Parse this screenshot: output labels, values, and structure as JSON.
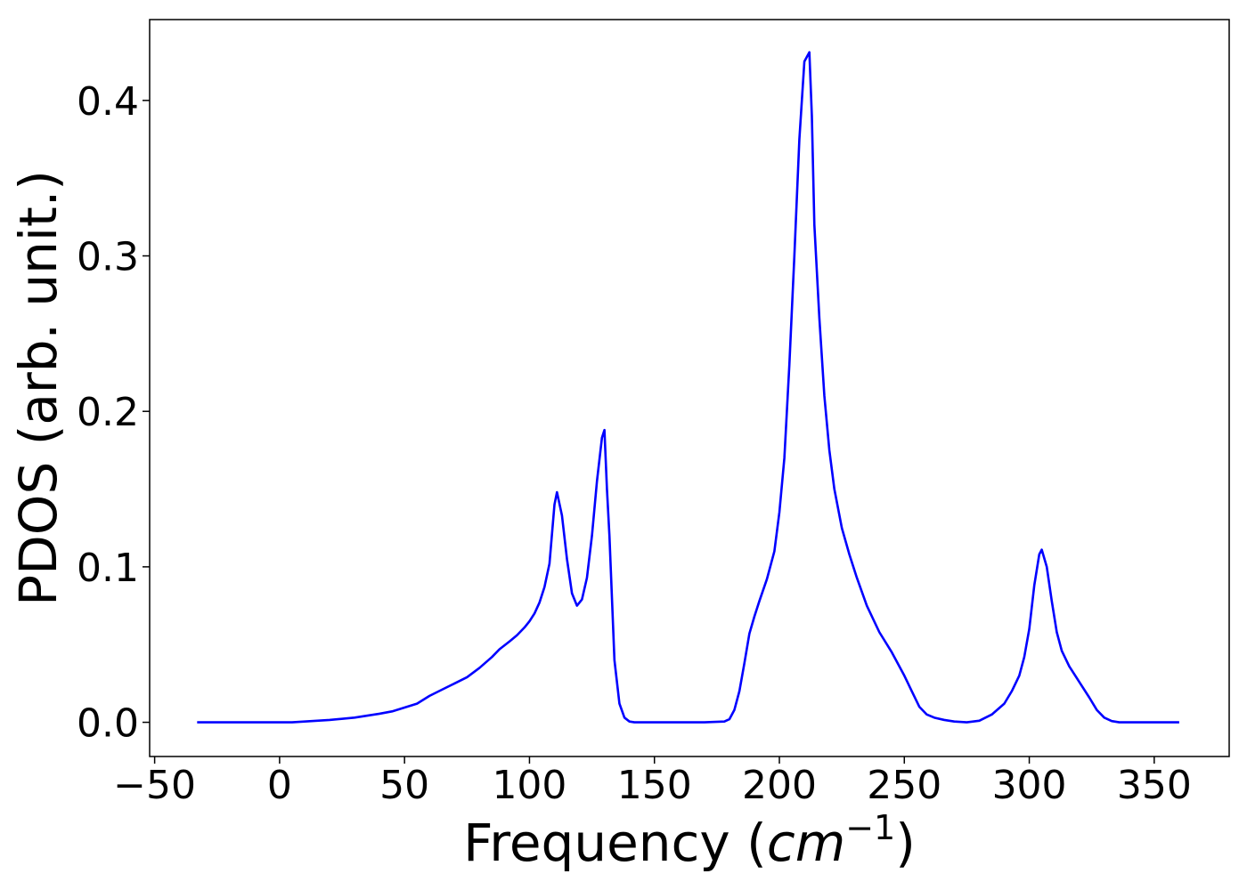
{
  "chart_data": {
    "type": "line",
    "xlabel_prefix": "Frequency (",
    "xlabel_unit_base": "cm",
    "xlabel_unit_exp": "−1",
    "xlabel_suffix": ")",
    "ylabel": "PDOS (arb. unit.)",
    "xlim": [
      -52,
      380
    ],
    "ylim": [
      -0.022,
      0.452
    ],
    "xticks": [
      -50,
      0,
      50,
      100,
      150,
      200,
      250,
      300,
      350
    ],
    "xtick_labels": [
      "−50",
      "0",
      "50",
      "100",
      "150",
      "200",
      "250",
      "300",
      "350"
    ],
    "yticks": [
      0.0,
      0.1,
      0.2,
      0.3,
      0.4
    ],
    "ytick_labels": [
      "0.0",
      "0.1",
      "0.2",
      "0.3",
      "0.4"
    ],
    "grid": false,
    "series": [
      {
        "color": "#0000ff",
        "x": [
          -33,
          0,
          5,
          10,
          20,
          30,
          40,
          45,
          50,
          55,
          60,
          65,
          70,
          75,
          80,
          85,
          88,
          92,
          95,
          98,
          100,
          102,
          104,
          106,
          108,
          110,
          111,
          113,
          115,
          117,
          119,
          121,
          123,
          125,
          127,
          129,
          130,
          131,
          132,
          134,
          136,
          138,
          140,
          142,
          145,
          150,
          160,
          170,
          178,
          180,
          182,
          184,
          186,
          188,
          190,
          192,
          195,
          198,
          200,
          202,
          204,
          206,
          208,
          210,
          212,
          213,
          214,
          216,
          218,
          220,
          222,
          225,
          228,
          231,
          235,
          240,
          245,
          250,
          253,
          256,
          259,
          262,
          266,
          270,
          275,
          280,
          285,
          290,
          293,
          296,
          298,
          300,
          302,
          304,
          305,
          307,
          309,
          311,
          313,
          316,
          320,
          324,
          327,
          330,
          333,
          336,
          340,
          350,
          360
        ],
        "y": [
          0.0,
          0.0,
          0.0,
          0.0005,
          0.0015,
          0.003,
          0.0055,
          0.007,
          0.0095,
          0.012,
          0.017,
          0.021,
          0.025,
          0.029,
          0.035,
          0.042,
          0.047,
          0.052,
          0.056,
          0.061,
          0.065,
          0.07,
          0.077,
          0.087,
          0.102,
          0.14,
          0.148,
          0.133,
          0.105,
          0.083,
          0.075,
          0.079,
          0.093,
          0.12,
          0.155,
          0.183,
          0.188,
          0.15,
          0.12,
          0.04,
          0.012,
          0.003,
          0.0005,
          0.0,
          0.0,
          0.0,
          0.0,
          0.0,
          0.0005,
          0.002,
          0.008,
          0.02,
          0.038,
          0.057,
          0.068,
          0.078,
          0.092,
          0.11,
          0.135,
          0.17,
          0.23,
          0.3,
          0.375,
          0.425,
          0.431,
          0.39,
          0.32,
          0.26,
          0.21,
          0.175,
          0.15,
          0.125,
          0.108,
          0.093,
          0.075,
          0.058,
          0.045,
          0.03,
          0.02,
          0.01,
          0.005,
          0.003,
          0.0015,
          0.0005,
          0.0,
          0.001,
          0.005,
          0.012,
          0.02,
          0.03,
          0.042,
          0.06,
          0.088,
          0.108,
          0.111,
          0.1,
          0.078,
          0.058,
          0.046,
          0.036,
          0.026,
          0.016,
          0.008,
          0.003,
          0.0008,
          0.0,
          0.0,
          0.0,
          0.0
        ]
      }
    ]
  }
}
